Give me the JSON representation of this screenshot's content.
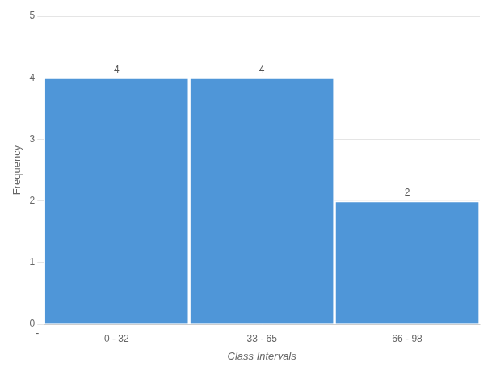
{
  "chart_data": {
    "type": "bar",
    "categories": [
      "0 - 32",
      "33 - 65",
      "66 - 98"
    ],
    "values": [
      4,
      4,
      2
    ],
    "color": "#4F96D8",
    "xlabel": "Class Intervals",
    "ylabel": "Frequency",
    "ylim": [
      0,
      5
    ],
    "yticks": [
      0,
      1,
      2,
      3,
      4,
      5
    ],
    "grid": true,
    "data_labels": true,
    "annotations": [
      "-"
    ]
  }
}
